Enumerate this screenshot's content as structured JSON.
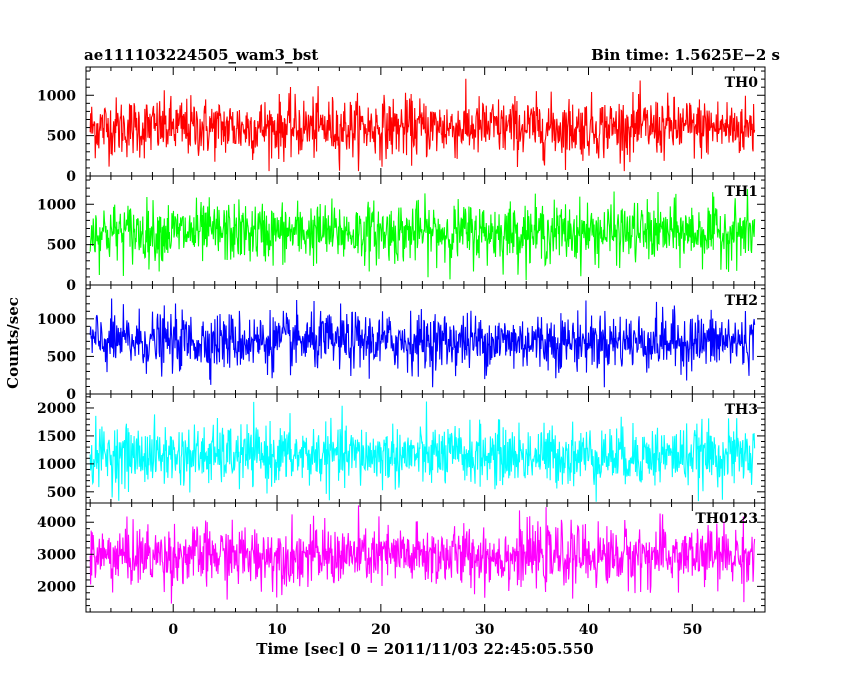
{
  "chart_data": {
    "type": "line",
    "title_left": "ae111103224505_wam3_bst",
    "title_right": "Bin time: 1.5625E−2 s",
    "xlabel": "Time [sec] 0 = 2011/11/03 22:45:05.550",
    "ylabel": "Counts/sec",
    "xlim": [
      -8.4,
      57.0
    ],
    "x_ticks": [
      0,
      10,
      20,
      30,
      40,
      50
    ],
    "x_tick_labels": [
      "0",
      "10",
      "20",
      "30",
      "40",
      "50"
    ],
    "data_x_range": [
      -8.0,
      56.0
    ],
    "bin_time": 0.015625,
    "grid": false,
    "panels": [
      {
        "name": "TH0",
        "color": "#ff0000",
        "ylim": [
          0,
          1350
        ],
        "y_ticks": [
          0,
          500,
          1000
        ],
        "y_tick_labels": [
          "0",
          "500",
          "1000"
        ],
        "mean": 600,
        "low": 100,
        "high": 1300
      },
      {
        "name": "TH1",
        "color": "#00ff00",
        "ylim": [
          0,
          1350
        ],
        "y_ticks": [
          0,
          500,
          1000
        ],
        "y_tick_labels": [
          "0",
          "500",
          "1000"
        ],
        "mean": 650,
        "low": 100,
        "high": 1300
      },
      {
        "name": "TH2",
        "color": "#0000ff",
        "ylim": [
          0,
          1450
        ],
        "y_ticks": [
          0,
          500,
          1000
        ],
        "y_tick_labels": [
          "0",
          "500",
          "1000"
        ],
        "mean": 700,
        "low": 150,
        "high": 1400
      },
      {
        "name": "TH3",
        "color": "#00ffff",
        "ylim": [
          300,
          2250
        ],
        "y_ticks": [
          500,
          1000,
          1500,
          2000
        ],
        "y_tick_labels": [
          "500",
          "1000",
          "1500",
          "2000"
        ],
        "mean": 1150,
        "low": 400,
        "high": 2150
      },
      {
        "name": "TH0123",
        "color": "#ff00ff",
        "ylim": [
          1200,
          4600
        ],
        "y_ticks": [
          2000,
          3000,
          4000
        ],
        "y_tick_labels": [
          "2000",
          "3000",
          "4000"
        ],
        "mean": 2950,
        "low": 1400,
        "high": 4500
      }
    ]
  }
}
